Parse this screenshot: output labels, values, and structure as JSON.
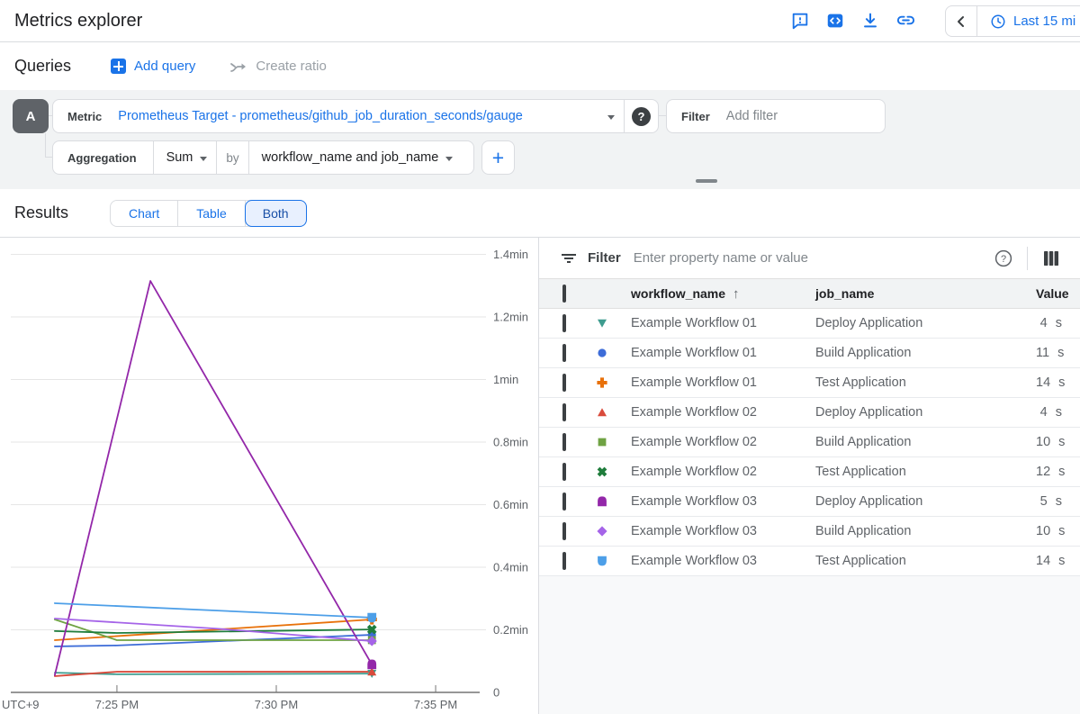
{
  "header": {
    "title": "Metrics explorer",
    "icons": [
      "feedback-icon",
      "code-icon",
      "download-icon",
      "link-icon"
    ],
    "time_range": {
      "label": "Last 15 mi"
    }
  },
  "queries_bar": {
    "title": "Queries",
    "add_query_label": "Add query",
    "create_ratio_label": "Create ratio"
  },
  "query_builder": {
    "query_letter": "A",
    "metric_label": "Metric",
    "metric_value": "Prometheus Target - prometheus/github_job_duration_seconds/gauge",
    "help_glyph": "?",
    "filter_label": "Filter",
    "filter_placeholder": "Add filter",
    "aggregation_label": "Aggregation",
    "aggregation_value": "Sum",
    "by_label": "by",
    "by_value": "workflow_name and job_name",
    "add_button_label": "+"
  },
  "results_bar": {
    "title": "Results",
    "tabs": [
      {
        "label": "Chart",
        "selected": false
      },
      {
        "label": "Table",
        "selected": false
      },
      {
        "label": "Both",
        "selected": true
      }
    ]
  },
  "table": {
    "filter_label": "Filter",
    "filter_placeholder": "Enter property name or value",
    "columns": {
      "workflow": "workflow_name",
      "job": "job_name",
      "value": "Value"
    },
    "sorted_by": "workflow_name",
    "sort_direction": "asc",
    "rows": [
      {
        "marker": "triangle-down",
        "color": "#3E9C8F",
        "workflow": "Example Workflow 01",
        "job": "Deploy Application",
        "value": "4",
        "unit": "s"
      },
      {
        "marker": "circle",
        "color": "#3D6CD8",
        "workflow": "Example Workflow 01",
        "job": "Build Application",
        "value": "11",
        "unit": "s"
      },
      {
        "marker": "plus",
        "color": "#E8710A",
        "workflow": "Example Workflow 01",
        "job": "Test Application",
        "value": "14",
        "unit": "s"
      },
      {
        "marker": "triangle-up",
        "color": "#D94B3C",
        "workflow": "Example Workflow 02",
        "job": "Deploy Application",
        "value": "4",
        "unit": "s"
      },
      {
        "marker": "square",
        "color": "#6FA243",
        "workflow": "Example Workflow 02",
        "job": "Build Application",
        "value": "10",
        "unit": "s"
      },
      {
        "marker": "x",
        "color": "#1F7D3C",
        "workflow": "Example Workflow 02",
        "job": "Test Application",
        "value": "12",
        "unit": "s"
      },
      {
        "marker": "pentagon",
        "color": "#9327A9",
        "workflow": "Example Workflow 03",
        "job": "Deploy Application",
        "value": "5",
        "unit": "s"
      },
      {
        "marker": "diamond",
        "color": "#A564E8",
        "workflow": "Example Workflow 03",
        "job": "Build Application",
        "value": "10",
        "unit": "s"
      },
      {
        "marker": "shield",
        "color": "#4D9FE8",
        "workflow": "Example Workflow 03",
        "job": "Test Application",
        "value": "14",
        "unit": "s"
      }
    ]
  },
  "chart_data": {
    "type": "line",
    "unit": "minutes",
    "utc_label": "UTC+9",
    "ylim": [
      0,
      1.4
    ],
    "xlim_minutes": [
      -3.33,
      11.58
    ],
    "x_ticks": [
      {
        "t": 0,
        "label": "7:25 PM"
      },
      {
        "t": 5,
        "label": "7:30 PM"
      },
      {
        "t": 10,
        "label": "7:35 PM"
      }
    ],
    "y_ticks": [
      {
        "v": 0,
        "label": "0"
      },
      {
        "v": 0.2,
        "label": "0.2min"
      },
      {
        "v": 0.4,
        "label": "0.4min"
      },
      {
        "v": 0.6,
        "label": "0.6min"
      },
      {
        "v": 0.8,
        "label": "0.8min"
      },
      {
        "v": 1.0,
        "label": "1min"
      },
      {
        "v": 1.2,
        "label": "1.2min"
      },
      {
        "v": 1.4,
        "label": "1.4min"
      }
    ],
    "series": [
      {
        "name": "Example Workflow 01 - Deploy Application",
        "color": "#3E9C8F",
        "marker": "triangle-down",
        "points": [
          [
            -1.95,
            0.063
          ],
          [
            0,
            0.058
          ],
          [
            8,
            0.06
          ]
        ]
      },
      {
        "name": "Example Workflow 01 - Build Application",
        "color": "#3D6CD8",
        "marker": "circle",
        "points": [
          [
            -1.95,
            0.147
          ],
          [
            0,
            0.15
          ],
          [
            8,
            0.184
          ]
        ]
      },
      {
        "name": "Example Workflow 01 - Test Application",
        "color": "#E8710A",
        "marker": "plus",
        "points": [
          [
            -1.95,
            0.167
          ],
          [
            8,
            0.233
          ]
        ]
      },
      {
        "name": "Example Workflow 02 - Deploy Application",
        "color": "#D94B3C",
        "marker": "triangle-up",
        "points": [
          [
            -1.95,
            0.052
          ],
          [
            0,
            0.066
          ],
          [
            8,
            0.066
          ]
        ]
      },
      {
        "name": "Example Workflow 02 - Build Application",
        "color": "#6FA243",
        "marker": "square",
        "points": [
          [
            -1.95,
            0.233
          ],
          [
            0,
            0.167
          ],
          [
            8,
            0.167
          ]
        ]
      },
      {
        "name": "Example Workflow 02 - Test Application",
        "color": "#1F7D3C",
        "marker": "x",
        "points": [
          [
            -1.95,
            0.196
          ],
          [
            0,
            0.19
          ],
          [
            8,
            0.201
          ]
        ]
      },
      {
        "name": "Example Workflow 03 - Deploy Application",
        "color": "#9327A9",
        "marker": "pentagon",
        "points": [
          [
            -1.95,
            0.055
          ],
          [
            1.05,
            1.315
          ],
          [
            8,
            0.089
          ]
        ]
      },
      {
        "name": "Example Workflow 03 - Build Application",
        "color": "#A564E8",
        "marker": "diamond",
        "points": [
          [
            -1.95,
            0.236
          ],
          [
            3.1,
            0.204
          ],
          [
            8,
            0.164
          ]
        ]
      },
      {
        "name": "Example Workflow 03 - Test Application",
        "color": "#4D9FE8",
        "marker": "shield",
        "points": [
          [
            -1.95,
            0.285
          ],
          [
            8,
            0.239
          ]
        ]
      }
    ]
  }
}
